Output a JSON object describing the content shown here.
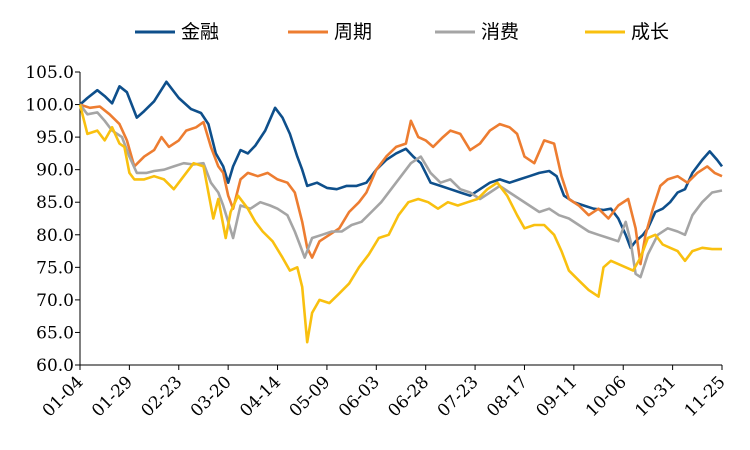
{
  "chart_data": {
    "type": "line",
    "title": "",
    "xlabel": "",
    "ylabel": "",
    "ylim": [
      60,
      105
    ],
    "yticks": [
      "60.0",
      "65.0",
      "70.0",
      "75.0",
      "80.0",
      "85.0",
      "90.0",
      "95.0",
      "100.0",
      "105.0"
    ],
    "xticks": [
      "01-04",
      "01-29",
      "02-23",
      "03-20",
      "04-14",
      "05-09",
      "06-03",
      "06-28",
      "07-23",
      "08-17",
      "09-11",
      "10-06",
      "10-31",
      "11-25"
    ],
    "grid": false,
    "legend_position": "top",
    "series": [
      {
        "name": "金融",
        "color": "#0E4F8B",
        "points": [
          [
            0,
            100.0
          ],
          [
            0.3,
            101.0
          ],
          [
            0.7,
            102.2
          ],
          [
            1.0,
            101.3
          ],
          [
            1.3,
            100.2
          ],
          [
            1.6,
            102.8
          ],
          [
            1.9,
            101.9
          ],
          [
            2.3,
            98.0
          ],
          [
            2.6,
            99.0
          ],
          [
            3.0,
            100.5
          ],
          [
            3.5,
            103.5
          ],
          [
            4.0,
            101.0
          ],
          [
            4.5,
            99.3
          ],
          [
            4.9,
            98.7
          ],
          [
            5.2,
            97.0
          ],
          [
            5.5,
            92.5
          ],
          [
            5.8,
            90.5
          ],
          [
            6.0,
            88.0
          ],
          [
            6.2,
            90.5
          ],
          [
            6.5,
            93.0
          ],
          [
            6.8,
            92.5
          ],
          [
            7.1,
            93.7
          ],
          [
            7.5,
            96.0
          ],
          [
            7.9,
            99.5
          ],
          [
            8.2,
            98.0
          ],
          [
            8.5,
            95.5
          ],
          [
            8.8,
            92.0
          ],
          [
            9.0,
            90.0
          ],
          [
            9.2,
            87.5
          ],
          [
            9.6,
            88.0
          ],
          [
            10.0,
            87.2
          ],
          [
            10.4,
            87.0
          ],
          [
            10.8,
            87.5
          ],
          [
            11.2,
            87.5
          ],
          [
            11.6,
            88.0
          ],
          [
            12.0,
            90.0
          ],
          [
            12.4,
            91.5
          ],
          [
            12.8,
            92.5
          ],
          [
            13.2,
            93.2
          ],
          [
            13.5,
            92.0
          ],
          [
            13.8,
            91.0
          ],
          [
            14.2,
            88.0
          ],
          [
            14.6,
            87.5
          ],
          [
            15.0,
            87.0
          ],
          [
            15.4,
            86.5
          ],
          [
            15.8,
            86.0
          ],
          [
            16.2,
            87.0
          ],
          [
            16.6,
            88.0
          ],
          [
            17.0,
            88.5
          ],
          [
            17.4,
            88.0
          ],
          [
            17.8,
            88.5
          ],
          [
            18.2,
            89.0
          ],
          [
            18.6,
            89.5
          ],
          [
            19.0,
            89.8
          ],
          [
            19.3,
            89.0
          ],
          [
            19.6,
            86.0
          ],
          [
            20.0,
            85.0
          ],
          [
            20.4,
            84.5
          ],
          [
            20.8,
            84.0
          ],
          [
            21.2,
            83.8
          ],
          [
            21.5,
            84.0
          ],
          [
            21.8,
            82.5
          ],
          [
            22.1,
            80.0
          ],
          [
            22.3,
            78.0
          ],
          [
            22.5,
            79.0
          ],
          [
            22.8,
            80.0
          ],
          [
            23.0,
            81.0
          ],
          [
            23.3,
            83.5
          ],
          [
            23.6,
            84.0
          ],
          [
            23.9,
            85.0
          ],
          [
            24.2,
            86.5
          ],
          [
            24.5,
            87.0
          ],
          [
            24.8,
            89.5
          ],
          [
            25.2,
            91.5
          ],
          [
            25.5,
            92.8
          ],
          [
            25.8,
            91.5
          ],
          [
            26.0,
            90.5
          ]
        ]
      },
      {
        "name": "周期",
        "color": "#ED7D31",
        "points": [
          [
            0,
            100.0
          ],
          [
            0.4,
            99.5
          ],
          [
            0.8,
            99.7
          ],
          [
            1.2,
            98.5
          ],
          [
            1.6,
            97.0
          ],
          [
            1.9,
            94.5
          ],
          [
            2.2,
            90.5
          ],
          [
            2.6,
            92.0
          ],
          [
            3.0,
            93.0
          ],
          [
            3.3,
            95.0
          ],
          [
            3.6,
            93.5
          ],
          [
            4.0,
            94.5
          ],
          [
            4.3,
            96.0
          ],
          [
            4.7,
            96.5
          ],
          [
            5.0,
            97.3
          ],
          [
            5.3,
            93.5
          ],
          [
            5.6,
            90.5
          ],
          [
            5.8,
            89.5
          ],
          [
            6.0,
            86.0
          ],
          [
            6.2,
            84.0
          ],
          [
            6.5,
            88.5
          ],
          [
            6.8,
            89.5
          ],
          [
            7.2,
            89.0
          ],
          [
            7.6,
            89.5
          ],
          [
            8.0,
            88.5
          ],
          [
            8.4,
            88.0
          ],
          [
            8.7,
            86.5
          ],
          [
            9.0,
            82.0
          ],
          [
            9.2,
            78.0
          ],
          [
            9.4,
            76.5
          ],
          [
            9.7,
            79.0
          ],
          [
            10.1,
            80.0
          ],
          [
            10.5,
            81.0
          ],
          [
            10.9,
            83.5
          ],
          [
            11.3,
            85.0
          ],
          [
            11.6,
            86.5
          ],
          [
            12.0,
            90.0
          ],
          [
            12.4,
            92.0
          ],
          [
            12.8,
            93.5
          ],
          [
            13.2,
            94.0
          ],
          [
            13.4,
            97.5
          ],
          [
            13.7,
            95.0
          ],
          [
            14.0,
            94.5
          ],
          [
            14.3,
            93.5
          ],
          [
            14.7,
            95.0
          ],
          [
            15.0,
            96.0
          ],
          [
            15.4,
            95.5
          ],
          [
            15.8,
            93.0
          ],
          [
            16.2,
            94.0
          ],
          [
            16.6,
            96.0
          ],
          [
            17.0,
            97.0
          ],
          [
            17.4,
            96.5
          ],
          [
            17.7,
            95.5
          ],
          [
            18.0,
            92.0
          ],
          [
            18.4,
            91.0
          ],
          [
            18.8,
            94.5
          ],
          [
            19.2,
            94.0
          ],
          [
            19.5,
            89.0
          ],
          [
            19.8,
            85.5
          ],
          [
            20.2,
            84.5
          ],
          [
            20.6,
            83.0
          ],
          [
            21.0,
            84.0
          ],
          [
            21.4,
            82.5
          ],
          [
            21.8,
            84.5
          ],
          [
            22.2,
            85.5
          ],
          [
            22.5,
            81.0
          ],
          [
            22.7,
            75.5
          ],
          [
            22.9,
            80.0
          ],
          [
            23.2,
            84.0
          ],
          [
            23.5,
            87.5
          ],
          [
            23.8,
            88.5
          ],
          [
            24.2,
            89.0
          ],
          [
            24.6,
            88.0
          ],
          [
            25.0,
            89.5
          ],
          [
            25.4,
            90.5
          ],
          [
            25.7,
            89.5
          ],
          [
            26.0,
            89.0
          ]
        ]
      },
      {
        "name": "消费",
        "color": "#A5A5A5",
        "points": [
          [
            0,
            100.0
          ],
          [
            0.3,
            98.5
          ],
          [
            0.7,
            98.8
          ],
          [
            1.0,
            97.5
          ],
          [
            1.3,
            96.0
          ],
          [
            1.7,
            95.0
          ],
          [
            2.0,
            92.0
          ],
          [
            2.3,
            89.5
          ],
          [
            2.7,
            89.5
          ],
          [
            3.0,
            89.8
          ],
          [
            3.4,
            90.0
          ],
          [
            3.8,
            90.5
          ],
          [
            4.2,
            91.0
          ],
          [
            4.6,
            90.8
          ],
          [
            5.0,
            91.0
          ],
          [
            5.3,
            88.0
          ],
          [
            5.6,
            86.5
          ],
          [
            5.8,
            84.5
          ],
          [
            6.0,
            82.0
          ],
          [
            6.2,
            79.5
          ],
          [
            6.5,
            84.5
          ],
          [
            6.9,
            84.0
          ],
          [
            7.3,
            85.0
          ],
          [
            7.7,
            84.5
          ],
          [
            8.0,
            84.0
          ],
          [
            8.4,
            83.0
          ],
          [
            8.7,
            80.5
          ],
          [
            8.9,
            78.5
          ],
          [
            9.1,
            76.5
          ],
          [
            9.4,
            79.5
          ],
          [
            9.8,
            80.0
          ],
          [
            10.2,
            80.5
          ],
          [
            10.6,
            80.5
          ],
          [
            11.0,
            81.5
          ],
          [
            11.4,
            82.0
          ],
          [
            11.8,
            83.5
          ],
          [
            12.2,
            85.0
          ],
          [
            12.6,
            87.0
          ],
          [
            13.0,
            89.0
          ],
          [
            13.4,
            91.0
          ],
          [
            13.8,
            92.0
          ],
          [
            14.2,
            89.5
          ],
          [
            14.6,
            88.0
          ],
          [
            15.0,
            88.5
          ],
          [
            15.4,
            87.0
          ],
          [
            15.8,
            86.5
          ],
          [
            16.2,
            85.5
          ],
          [
            16.6,
            86.5
          ],
          [
            17.0,
            87.5
          ],
          [
            17.4,
            86.5
          ],
          [
            17.8,
            85.5
          ],
          [
            18.2,
            84.5
          ],
          [
            18.6,
            83.5
          ],
          [
            19.0,
            84.0
          ],
          [
            19.4,
            83.0
          ],
          [
            19.8,
            82.5
          ],
          [
            20.2,
            81.5
          ],
          [
            20.6,
            80.5
          ],
          [
            21.0,
            80.0
          ],
          [
            21.4,
            79.5
          ],
          [
            21.8,
            79.0
          ],
          [
            22.1,
            82.0
          ],
          [
            22.3,
            79.0
          ],
          [
            22.5,
            74.0
          ],
          [
            22.7,
            73.5
          ],
          [
            23.0,
            77.0
          ],
          [
            23.4,
            80.0
          ],
          [
            23.8,
            81.0
          ],
          [
            24.2,
            80.5
          ],
          [
            24.5,
            80.0
          ],
          [
            24.8,
            83.0
          ],
          [
            25.2,
            85.0
          ],
          [
            25.6,
            86.5
          ],
          [
            26.0,
            86.8
          ]
        ]
      },
      {
        "name": "成长",
        "color": "#F9C00F",
        "points": [
          [
            0,
            100.0
          ],
          [
            0.3,
            95.5
          ],
          [
            0.7,
            96.0
          ],
          [
            1.0,
            94.5
          ],
          [
            1.3,
            96.5
          ],
          [
            1.6,
            94.0
          ],
          [
            1.8,
            93.5
          ],
          [
            2.0,
            89.5
          ],
          [
            2.2,
            88.5
          ],
          [
            2.6,
            88.5
          ],
          [
            3.0,
            89.0
          ],
          [
            3.4,
            88.5
          ],
          [
            3.8,
            87.0
          ],
          [
            4.2,
            89.0
          ],
          [
            4.6,
            91.0
          ],
          [
            5.0,
            90.5
          ],
          [
            5.2,
            86.5
          ],
          [
            5.4,
            82.5
          ],
          [
            5.6,
            85.5
          ],
          [
            5.9,
            79.5
          ],
          [
            6.1,
            83.5
          ],
          [
            6.4,
            86.0
          ],
          [
            6.8,
            84.0
          ],
          [
            7.1,
            82.0
          ],
          [
            7.4,
            80.5
          ],
          [
            7.8,
            79.0
          ],
          [
            8.2,
            76.5
          ],
          [
            8.5,
            74.5
          ],
          [
            8.8,
            75.0
          ],
          [
            9.0,
            72.0
          ],
          [
            9.2,
            63.5
          ],
          [
            9.4,
            68.0
          ],
          [
            9.7,
            70.0
          ],
          [
            10.1,
            69.5
          ],
          [
            10.5,
            71.0
          ],
          [
            10.9,
            72.5
          ],
          [
            11.3,
            75.0
          ],
          [
            11.7,
            77.0
          ],
          [
            12.1,
            79.5
          ],
          [
            12.5,
            80.0
          ],
          [
            12.9,
            83.0
          ],
          [
            13.3,
            85.0
          ],
          [
            13.7,
            85.5
          ],
          [
            14.1,
            85.0
          ],
          [
            14.5,
            84.0
          ],
          [
            14.9,
            85.0
          ],
          [
            15.3,
            84.5
          ],
          [
            15.7,
            85.0
          ],
          [
            16.1,
            85.5
          ],
          [
            16.5,
            87.0
          ],
          [
            16.9,
            88.0
          ],
          [
            17.3,
            86.0
          ],
          [
            17.7,
            83.0
          ],
          [
            18.0,
            81.0
          ],
          [
            18.4,
            81.5
          ],
          [
            18.8,
            81.5
          ],
          [
            19.2,
            80.0
          ],
          [
            19.5,
            77.5
          ],
          [
            19.8,
            74.5
          ],
          [
            20.2,
            73.0
          ],
          [
            20.6,
            71.5
          ],
          [
            21.0,
            70.5
          ],
          [
            21.2,
            75.0
          ],
          [
            21.5,
            76.0
          ],
          [
            21.8,
            75.5
          ],
          [
            22.1,
            75.0
          ],
          [
            22.4,
            74.5
          ],
          [
            22.7,
            76.5
          ],
          [
            23.0,
            79.5
          ],
          [
            23.3,
            80.0
          ],
          [
            23.6,
            78.5
          ],
          [
            23.9,
            78.0
          ],
          [
            24.2,
            77.5
          ],
          [
            24.5,
            76.0
          ],
          [
            24.8,
            77.5
          ],
          [
            25.2,
            78.0
          ],
          [
            25.6,
            77.8
          ],
          [
            26.0,
            77.8
          ]
        ]
      }
    ]
  }
}
